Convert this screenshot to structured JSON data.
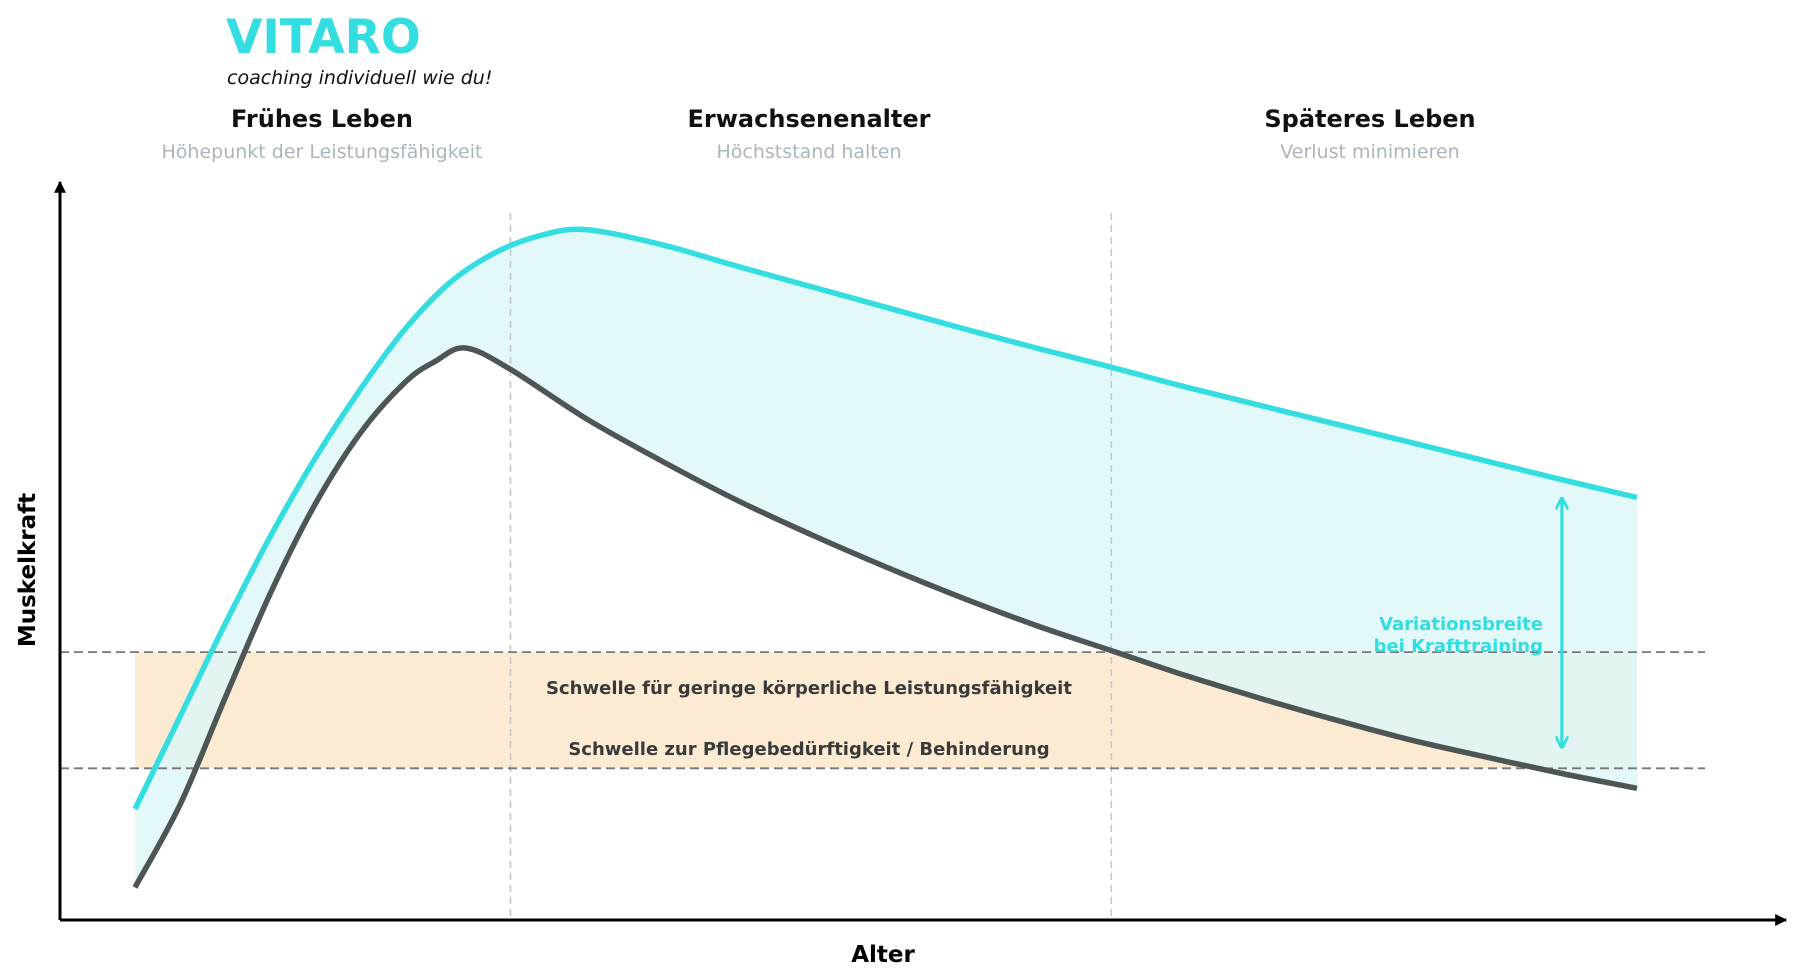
{
  "brand": {
    "name": "VITARO",
    "tagline": "coaching individuell wie du!",
    "color": "#33DDE0"
  },
  "phases": [
    {
      "title": "Frühes Leben",
      "subtitle": "Höhepunkt der Leistungsfähigkeit"
    },
    {
      "title": "Erwachsenenalter",
      "subtitle": "Höchststand halten"
    },
    {
      "title": "Späteres Leben",
      "subtitle": "Verlust minimieren"
    }
  ],
  "colors": {
    "training": "#33DDE0",
    "baseline": "#4D5555",
    "band_fill": "#FCEBD3",
    "variation_fill": "#DDF7F8",
    "threshold_line": "#777777",
    "phase_divider": "#C8C8C8",
    "subtitle": "#A8B6BF",
    "title": "#111111"
  },
  "chart_data": {
    "type": "line",
    "title": "",
    "xlabel": "Alter",
    "ylabel": "Muskelkraft",
    "x_axis_ticks": "none",
    "y_axis_ticks": "none",
    "xlim": [
      0,
      100
    ],
    "ylim": [
      0,
      100
    ],
    "series": [
      {
        "key": "training",
        "x": [
          0,
          3,
          6,
          9,
          12,
          15,
          18,
          21,
          24,
          27,
          30,
          35,
          40,
          45,
          50,
          55,
          60,
          65,
          70,
          75,
          80,
          85,
          90,
          95,
          100
        ],
        "y": [
          15,
          27.5,
          40,
          51.8,
          62.4,
          71.7,
          79.9,
          86.2,
          90.2,
          92.5,
          93.3,
          91.3,
          88.4,
          85.6,
          82.8,
          80.0,
          77.3,
          74.7,
          72.0,
          69.5,
          67.0,
          64.5,
          62.0,
          59.5,
          57.1
        ]
      },
      {
        "key": "baseline",
        "x": [
          0,
          3,
          6,
          9,
          12,
          15,
          18,
          20,
          22,
          25,
          30,
          35,
          40,
          45,
          50,
          55,
          60,
          65,
          70,
          75,
          80,
          85,
          90,
          95,
          100
        ],
        "y": [
          4.4,
          15.6,
          30,
          44.1,
          56.2,
          65.8,
          72.7,
          75.5,
          77.3,
          74.4,
          67.8,
          62.1,
          56.8,
          52.1,
          47.7,
          43.6,
          39.8,
          36.4,
          33.0,
          29.9,
          27.0,
          24.3,
          22.0,
          19.8,
          17.8
        ]
      }
    ],
    "phase_dividers_x": [
      25,
      65
    ],
    "thresholds": [
      {
        "label": "Schwelle für geringe körperliche Leistungsfähigkeit",
        "y": 36.2
      },
      {
        "label": "Schwelle zur Pflegebedürftigkeit / Behinderung",
        "y": 20.5
      }
    ],
    "band": {
      "x_start": 0,
      "x_end": 100
    },
    "variation_annotation": {
      "lines": [
        "Variationsbreite",
        "bei Krafttraining"
      ],
      "x": 95,
      "y_top": 56.8,
      "y_bottom": 23.5
    }
  }
}
